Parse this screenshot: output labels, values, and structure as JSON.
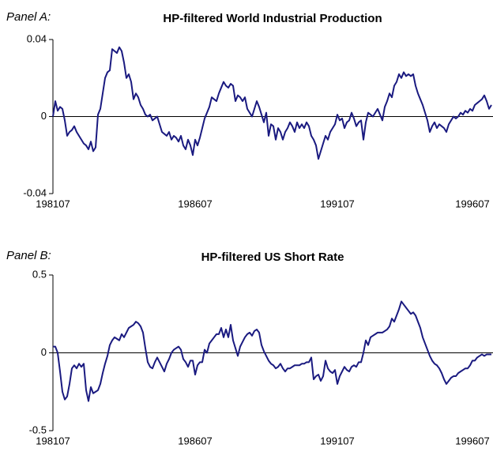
{
  "chart_data": [
    {
      "type": "line",
      "panel_label": "Panel A:",
      "title": "HP-filtered World Industrial Production",
      "color": "#1a1a80",
      "ylim": [
        -0.04,
        0.04
      ],
      "yticks": [
        -0.04,
        0,
        0.04
      ],
      "categories": [
        "198107",
        null,
        null,
        null,
        null,
        null,
        null,
        null,
        null,
        null,
        null,
        null,
        null,
        null,
        null,
        null,
        null,
        null,
        null,
        null,
        null,
        null,
        null,
        null,
        null,
        null,
        null,
        null,
        null,
        null,
        null,
        null,
        null,
        null,
        null,
        null,
        null,
        null,
        null,
        null,
        null,
        null,
        null,
        null,
        null,
        null,
        null,
        null,
        null,
        null,
        null,
        null,
        null,
        null,
        null,
        null,
        null,
        null,
        null,
        null,
        "198607",
        null,
        null,
        null,
        null,
        null,
        null,
        null,
        null,
        null,
        null,
        null,
        null,
        null,
        null,
        null,
        null,
        null,
        null,
        null,
        null,
        null,
        null,
        null,
        null,
        null,
        null,
        null,
        null,
        null,
        null,
        null,
        null,
        null,
        null,
        null,
        null,
        null,
        null,
        null,
        null,
        null,
        null,
        null,
        null,
        null,
        null,
        null,
        null,
        null,
        null,
        null,
        null,
        null,
        null,
        null,
        null,
        null,
        null,
        null,
        "199107",
        null,
        null,
        null,
        null,
        null,
        null,
        null,
        null,
        null,
        null,
        null,
        null,
        null,
        null,
        null,
        null,
        null,
        null,
        null,
        null,
        null,
        null,
        null,
        null,
        null,
        null,
        null,
        null,
        null,
        null,
        null,
        null,
        null,
        null,
        null,
        null,
        null,
        null,
        null,
        null,
        null,
        null,
        null,
        null,
        null,
        null,
        null,
        null,
        null,
        null,
        null,
        null,
        null,
        null,
        null,
        null,
        null,
        null,
        null,
        "199607",
        null,
        null,
        null,
        null,
        null
      ],
      "values": [
        0,
        0.008,
        0.003,
        0.005,
        0.004,
        -0.002,
        -0.01,
        -0.008,
        -0.007,
        -0.005,
        -0.008,
        -0.01,
        -0.012,
        -0.014,
        -0.015,
        -0.017,
        -0.013,
        -0.018,
        -0.016,
        0.001,
        0.004,
        0.012,
        0.02,
        0.023,
        0.024,
        0.035,
        0.034,
        0.033,
        0.036,
        0.034,
        0.028,
        0.02,
        0.022,
        0.018,
        0.009,
        0.012,
        0.01,
        0.006,
        0.004,
        0.001,
        0,
        0.001,
        -0.002,
        -0.001,
        0,
        -0.004,
        -0.008,
        -0.009,
        -0.01,
        -0.008,
        -0.012,
        -0.01,
        -0.011,
        -0.013,
        -0.01,
        -0.015,
        -0.017,
        -0.012,
        -0.015,
        -0.02,
        -0.012,
        -0.015,
        -0.011,
        -0.006,
        -0.001,
        0.002,
        0.005,
        0.01,
        0.009,
        0.008,
        0.012,
        0.015,
        0.018,
        0.016,
        0.015,
        0.017,
        0.016,
        0.008,
        0.011,
        0.01,
        0.008,
        0.01,
        0.004,
        0.002,
        0,
        0.004,
        0.008,
        0.005,
        0.001,
        -0.003,
        0.002,
        -0.01,
        -0.004,
        -0.005,
        -0.012,
        -0.006,
        -0.008,
        -0.012,
        -0.008,
        -0.006,
        -0.003,
        -0.005,
        -0.008,
        -0.003,
        -0.006,
        -0.004,
        -0.006,
        -0.003,
        -0.005,
        -0.01,
        -0.012,
        -0.015,
        -0.022,
        -0.018,
        -0.014,
        -0.01,
        -0.012,
        -0.008,
        -0.006,
        -0.004,
        0.001,
        -0.002,
        -0.001,
        -0.006,
        -0.003,
        -0.002,
        0.002,
        -0.001,
        -0.005,
        -0.003,
        -0.002,
        -0.012,
        -0.003,
        0.002,
        0.001,
        0,
        0.002,
        0.004,
        0.001,
        -0.002,
        0.005,
        0.008,
        0.012,
        0.01,
        0.016,
        0.018,
        0.022,
        0.02,
        0.023,
        0.021,
        0.022,
        0.021,
        0.022,
        0.016,
        0.012,
        0.009,
        0.006,
        0.002,
        -0.002,
        -0.008,
        -0.005,
        -0.003,
        -0.006,
        -0.004,
        -0.005,
        -0.006,
        -0.008,
        -0.004,
        -0.002,
        0,
        -0.001,
        0,
        0.002,
        0.001,
        0.003,
        0.002,
        0.004,
        0.003,
        0.006,
        0.007,
        0.008,
        0.009,
        0.011,
        0.008,
        0.004,
        0.006
      ]
    },
    {
      "type": "line",
      "panel_label": "Panel B:",
      "title": "HP-filtered US Short Rate",
      "color": "#1a1a80",
      "ylim": [
        -0.5,
        0.5
      ],
      "yticks": [
        -0.5,
        0,
        0.5
      ],
      "categories": [
        "198107",
        null,
        null,
        null,
        null,
        null,
        null,
        null,
        null,
        null,
        null,
        null,
        null,
        null,
        null,
        null,
        null,
        null,
        null,
        null,
        null,
        null,
        null,
        null,
        null,
        null,
        null,
        null,
        null,
        null,
        null,
        null,
        null,
        null,
        null,
        null,
        null,
        null,
        null,
        null,
        null,
        null,
        null,
        null,
        null,
        null,
        null,
        null,
        null,
        null,
        null,
        null,
        null,
        null,
        null,
        null,
        null,
        null,
        null,
        null,
        "198607",
        null,
        null,
        null,
        null,
        null,
        null,
        null,
        null,
        null,
        null,
        null,
        null,
        null,
        null,
        null,
        null,
        null,
        null,
        null,
        null,
        null,
        null,
        null,
        null,
        null,
        null,
        null,
        null,
        null,
        null,
        null,
        null,
        null,
        null,
        null,
        null,
        null,
        null,
        null,
        null,
        null,
        null,
        null,
        null,
        null,
        null,
        null,
        null,
        null,
        null,
        null,
        null,
        null,
        null,
        null,
        null,
        null,
        null,
        null,
        "199107",
        null,
        null,
        null,
        null,
        null,
        null,
        null,
        null,
        null,
        null,
        null,
        null,
        null,
        null,
        null,
        null,
        null,
        null,
        null,
        null,
        null,
        null,
        null,
        null,
        null,
        null,
        null,
        null,
        null,
        null,
        null,
        null,
        null,
        null,
        null,
        null,
        null,
        null,
        null,
        null,
        null,
        null,
        null,
        null,
        null,
        null,
        null,
        null,
        null,
        null,
        null,
        null,
        null,
        null,
        null,
        null,
        null,
        null,
        null,
        "199607",
        null,
        null,
        null,
        null,
        null
      ],
      "values": [
        0.04,
        0.04,
        0,
        -0.12,
        -0.25,
        -0.3,
        -0.28,
        -0.2,
        -0.1,
        -0.08,
        -0.1,
        -0.07,
        -0.09,
        -0.07,
        -0.24,
        -0.31,
        -0.22,
        -0.26,
        -0.25,
        -0.24,
        -0.2,
        -0.13,
        -0.07,
        -0.02,
        0.05,
        0.08,
        0.1,
        0.09,
        0.08,
        0.12,
        0.1,
        0.13,
        0.16,
        0.17,
        0.18,
        0.2,
        0.19,
        0.17,
        0.13,
        0.03,
        -0.06,
        -0.09,
        -0.1,
        -0.06,
        -0.03,
        -0.06,
        -0.09,
        -0.12,
        -0.07,
        -0.04,
        0,
        0.02,
        0.03,
        0.04,
        0.02,
        -0.04,
        -0.06,
        -0.09,
        -0.05,
        -0.05,
        -0.14,
        -0.08,
        -0.06,
        -0.06,
        0.02,
        0,
        0.06,
        0.08,
        0.1,
        0.12,
        0.12,
        0.16,
        0.1,
        0.15,
        0.1,
        0.18,
        0.08,
        0.03,
        -0.02,
        0.04,
        0.07,
        0.1,
        0.12,
        0.13,
        0.11,
        0.14,
        0.15,
        0.13,
        0.05,
        0.01,
        -0.02,
        -0.05,
        -0.07,
        -0.08,
        -0.1,
        -0.09,
        -0.07,
        -0.1,
        -0.12,
        -0.1,
        -0.1,
        -0.09,
        -0.08,
        -0.08,
        -0.08,
        -0.07,
        -0.07,
        -0.06,
        -0.06,
        -0.03,
        -0.17,
        -0.15,
        -0.14,
        -0.18,
        -0.15,
        -0.05,
        -0.1,
        -0.12,
        -0.13,
        -0.11,
        -0.2,
        -0.15,
        -0.12,
        -0.09,
        -0.11,
        -0.12,
        -0.09,
        -0.08,
        -0.09,
        -0.06,
        -0.06,
        0,
        0.08,
        0.05,
        0.1,
        0.11,
        0.12,
        0.13,
        0.13,
        0.13,
        0.14,
        0.15,
        0.17,
        0.22,
        0.2,
        0.24,
        0.28,
        0.33,
        0.31,
        0.29,
        0.27,
        0.25,
        0.26,
        0.24,
        0.2,
        0.16,
        0.1,
        0.06,
        0.02,
        -0.02,
        -0.05,
        -0.07,
        -0.08,
        -0.1,
        -0.13,
        -0.17,
        -0.2,
        -0.18,
        -0.16,
        -0.15,
        -0.15,
        -0.13,
        -0.12,
        -0.11,
        -0.1,
        -0.1,
        -0.08,
        -0.05,
        -0.05,
        -0.03,
        -0.02,
        -0.01,
        -0.02,
        -0.01,
        -0.01,
        -0.01
      ]
    }
  ]
}
